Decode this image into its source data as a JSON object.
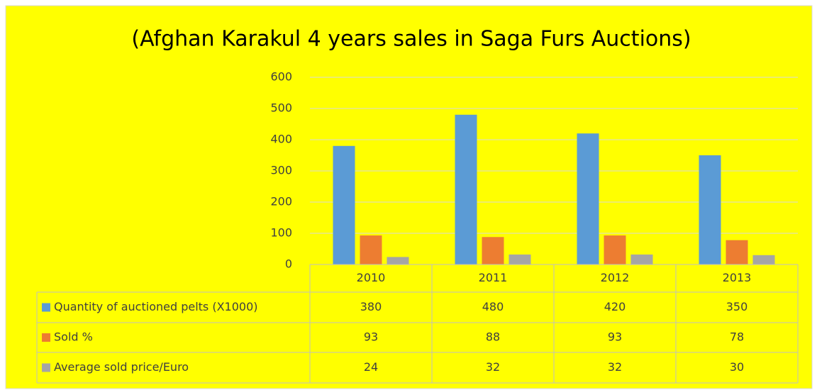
{
  "chart_data": {
    "type": "bar",
    "title": "(Afghan Karakul 4 years sales in Saga Furs Auctions)",
    "categories": [
      "2010",
      "2011",
      "2012",
      "2013"
    ],
    "series": [
      {
        "name": "Quantity of auctioned pelts (X1000)",
        "color": "#5b9bd5",
        "values": [
          380,
          480,
          420,
          350
        ]
      },
      {
        "name": "Sold %",
        "color": "#ed7d31",
        "values": [
          93,
          88,
          93,
          78
        ]
      },
      {
        "name": "Average sold price/Euro",
        "color": "#a5a5a5",
        "values": [
          24,
          32,
          32,
          30
        ]
      }
    ],
    "ylim": [
      0,
      600
    ],
    "yticks": [
      0,
      100,
      200,
      300,
      400,
      500,
      600
    ],
    "grid": true,
    "data_table": true
  }
}
